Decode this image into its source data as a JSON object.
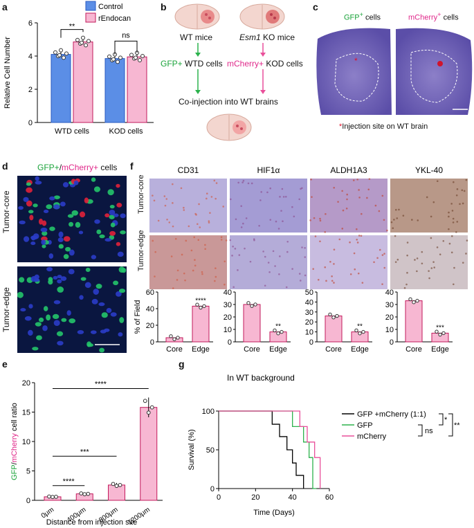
{
  "letters": {
    "a": "a",
    "b": "b",
    "c": "c",
    "d": "d",
    "e": "e",
    "f": "f",
    "g": "g"
  },
  "panel_a": {
    "legend": [
      "Control",
      "rEndocan"
    ],
    "ylabel": "Relative Cell Number",
    "yticks": [
      "0",
      "2",
      "4",
      "6"
    ],
    "groups": [
      "WTD cells",
      "KOD cells"
    ],
    "sig": [
      "**",
      "ns"
    ],
    "colors": {
      "control": "#5b8ee6",
      "rendocan": "#f7b7d2",
      "edge_control": "#2a5ac0",
      "edge_rendocan": "#c2185b"
    }
  },
  "panel_b": {
    "wt_mice": "WT mice",
    "ko_gene": "Esm1",
    "ko_suffix": " KO mice",
    "gfp_prefix": "GFP+",
    "gfp_suffix": " WTD cells",
    "mcherry_prefix": "mCherry+",
    "mcherry_suffix": " KOD cells",
    "coinjection": "Co-injection into WT brains"
  },
  "panel_c": {
    "gfp_label": "GFP",
    "gfp_sup": "+",
    "gfp_suffix": " cells",
    "mcherry_label": "mCherry",
    "mcherry_sup": "+",
    "mcherry_suffix": " cells",
    "star": "*",
    "caption": "Injection site on WT brain"
  },
  "panel_d": {
    "title_gfp": "GFP+",
    "title_sep": "/",
    "title_mcherry": "mCherry+",
    "title_suffix": " cells",
    "row_core": "Tumor-core",
    "row_edge": "Tumor-edge"
  },
  "panel_f": {
    "markers": [
      "CD31",
      "HIF1α",
      "ALDH1A3",
      "YKL-40"
    ],
    "row_core": "Tumor-core",
    "row_edge": "Tumor-edge",
    "ylabel": "% of Field",
    "xcats": [
      "Core",
      "Edge"
    ],
    "charts": [
      {
        "yticks": [
          "0",
          "20",
          "40",
          "60"
        ],
        "ymax": 60,
        "core": 5,
        "edge": 43,
        "sig": "****"
      },
      {
        "yticks": [
          "0",
          "10",
          "20",
          "30",
          "40"
        ],
        "ymax": 40,
        "core": 30,
        "edge": 8,
        "sig": "**"
      },
      {
        "yticks": [
          "0",
          "10",
          "20",
          "30",
          "40",
          "50"
        ],
        "ymax": 50,
        "core": 26,
        "edge": 10,
        "sig": "**"
      },
      {
        "yticks": [
          "0",
          "10",
          "20",
          "30",
          "40"
        ],
        "ymax": 40,
        "core": 33,
        "edge": 7,
        "sig": "***"
      }
    ]
  },
  "panel_e": {
    "ylabel_gfp": "GFP",
    "ylabel_sep": "/",
    "ylabel_mcherry": "mCherry",
    "ylabel_suffix": " cell ratio",
    "yticks": [
      "0",
      "5",
      "10",
      "15",
      "20"
    ],
    "categories": [
      "0μm",
      "400μm",
      "800μm",
      "1200μm"
    ],
    "xlabel": "Distance from injection site",
    "sig": [
      "****",
      "***",
      "****"
    ]
  },
  "panel_g": {
    "title": "In WT background",
    "ylabel": "Survival (%)",
    "xlabel": "Time (Days)",
    "yticks": [
      "0",
      "50",
      "100"
    ],
    "xticks": [
      "0",
      "20",
      "40",
      "60"
    ],
    "legend": [
      "GFP +mCherry (1:1)",
      "GFP",
      "mCherry"
    ],
    "sig": [
      "*",
      "**",
      "ns"
    ]
  },
  "chart_data": [
    {
      "type": "bar",
      "categories": [
        "WTD cells",
        "KOD cells"
      ],
      "series": [
        {
          "name": "Control",
          "values": [
            4.1,
            3.85
          ]
        },
        {
          "name": "rEndocan",
          "values": [
            4.85,
            3.95
          ]
        }
      ],
      "ylabel": "Relative Cell Number",
      "ylim": [
        0,
        6
      ]
    },
    {
      "type": "bar",
      "categories": [
        "0μm",
        "400μm",
        "800μm",
        "1200μm"
      ],
      "values": [
        0.6,
        1.1,
        2.6,
        15.8
      ],
      "ylabel": "GFP/mCherry cell ratio",
      "xlabel": "Distance from injection site",
      "ylim": [
        0,
        20
      ]
    },
    {
      "type": "line",
      "series": [
        {
          "name": "GFP +mCherry (1:1)",
          "x": [
            0,
            29,
            29,
            33,
            33,
            37,
            37,
            40,
            40,
            42,
            42,
            46,
            46
          ],
          "y": [
            100,
            100,
            83,
            83,
            67,
            67,
            50,
            50,
            33,
            33,
            17,
            17,
            0
          ]
        },
        {
          "name": "GFP",
          "x": [
            0,
            40,
            40,
            46,
            46,
            49,
            49,
            51,
            51,
            53
          ],
          "y": [
            100,
            100,
            80,
            80,
            60,
            60,
            40,
            40,
            0,
            0
          ]
        },
        {
          "name": "mCherry",
          "x": [
            0,
            44,
            44,
            48,
            48,
            52,
            52,
            55,
            55
          ],
          "y": [
            100,
            100,
            80,
            80,
            60,
            60,
            40,
            40,
            0
          ]
        }
      ],
      "xlabel": "Time (Days)",
      "ylabel": "Survival (%)",
      "xlim": [
        0,
        60
      ],
      "ylim": [
        0,
        100
      ]
    }
  ]
}
